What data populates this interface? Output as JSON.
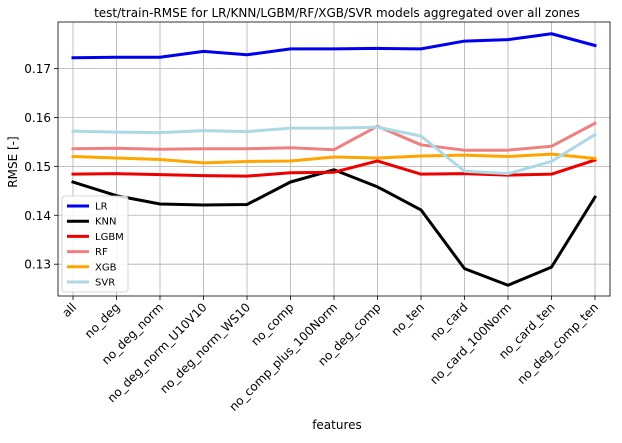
{
  "chart_data": {
    "type": "line",
    "title": "test/train-RMSE for LR/KNN/LGBM/RF/XGB/SVR models aggregated over all zones",
    "xlabel": "features",
    "ylabel": "RMSE [-]",
    "categories": [
      "all",
      "no_deg",
      "no_deg_norm",
      "no_deg_norm_U10V10",
      "no_deg_norm_WS10",
      "no_comp",
      "no_comp_plus_100Norm",
      "no_deg_comp",
      "no_ten",
      "no_card",
      "no_card_100Norm",
      "no_card_ten",
      "no_deg_comp_ten"
    ],
    "ylim": [
      0.1235,
      0.1795
    ],
    "yticks": [
      0.13,
      0.14,
      0.15,
      0.16,
      0.17
    ],
    "ytick_labels": [
      "0.13",
      "0.14",
      "0.15",
      "0.16",
      "0.17"
    ],
    "grid": true,
    "legend_position": "lower-left",
    "series": [
      {
        "name": "LR",
        "color": "#0000ee",
        "values": [
          0.1722,
          0.1723,
          0.1723,
          0.1735,
          0.1728,
          0.174,
          0.174,
          0.1741,
          0.174,
          0.1756,
          0.1759,
          0.1771,
          0.1747
        ]
      },
      {
        "name": "KNN",
        "color": "#000000",
        "values": [
          0.1468,
          0.144,
          0.1423,
          0.1421,
          0.1422,
          0.1468,
          0.1493,
          0.1458,
          0.1411,
          0.1291,
          0.1257,
          0.1294,
          0.1437
        ]
      },
      {
        "name": "LGBM",
        "color": "#ee0000",
        "values": [
          0.1484,
          0.1485,
          0.1483,
          0.1481,
          0.148,
          0.1487,
          0.1488,
          0.1511,
          0.1484,
          0.1485,
          0.1482,
          0.1484,
          0.1513
        ]
      },
      {
        "name": "RF",
        "color": "#ee8080",
        "values": [
          0.1536,
          0.1537,
          0.1535,
          0.1536,
          0.1536,
          0.1538,
          0.1534,
          0.1582,
          0.1544,
          0.1533,
          0.1533,
          0.1541,
          0.1588
        ]
      },
      {
        "name": "XGB",
        "color": "#ffa500",
        "values": [
          0.152,
          0.1517,
          0.1514,
          0.1507,
          0.151,
          0.1511,
          0.1519,
          0.1517,
          0.1521,
          0.1523,
          0.152,
          0.1525,
          0.1516
        ]
      },
      {
        "name": "SVR",
        "color": "#add8e6",
        "values": [
          0.1572,
          0.157,
          0.1569,
          0.1573,
          0.1571,
          0.1578,
          0.1578,
          0.158,
          0.1562,
          0.149,
          0.1485,
          0.151,
          0.1565
        ]
      }
    ]
  }
}
